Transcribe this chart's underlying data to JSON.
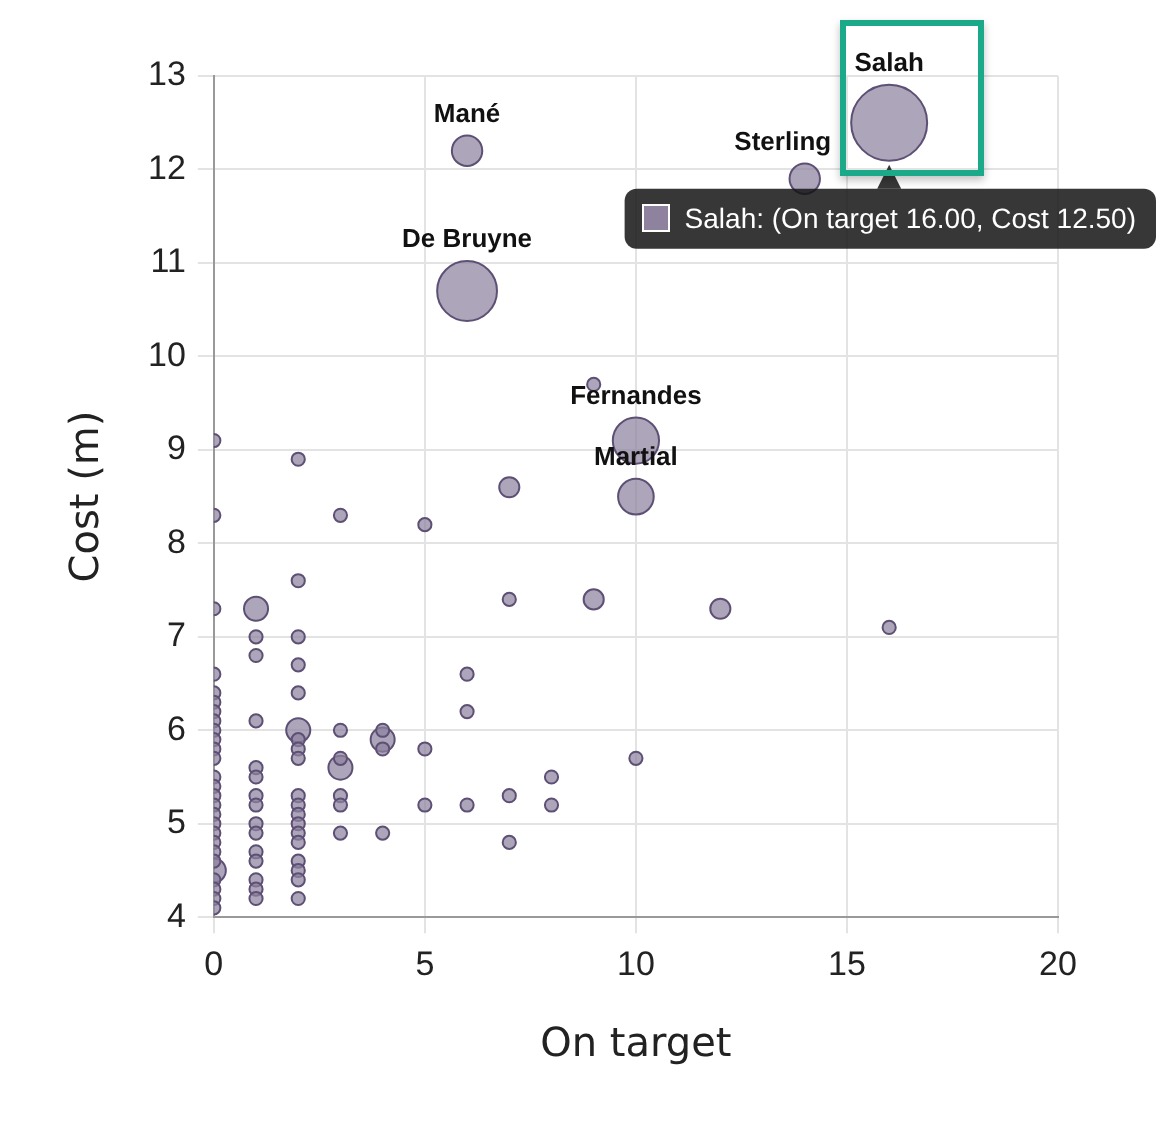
{
  "chart_data": {
    "type": "bubble",
    "xlabel": "On target",
    "ylabel": "Cost (m)",
    "xlim": [
      0,
      20
    ],
    "xticks": [
      0,
      5,
      10,
      15,
      20
    ],
    "ylim": [
      4,
      13
    ],
    "yticks": [
      4,
      5,
      6,
      7,
      8,
      9,
      10,
      11,
      12,
      13
    ],
    "grid": true,
    "legend": false,
    "x": [
      16,
      14,
      6,
      6,
      10,
      10,
      7,
      9,
      12,
      9,
      0,
      2,
      0,
      3,
      5,
      0,
      2,
      7,
      16,
      10,
      0,
      1,
      2,
      3,
      4,
      0,
      0,
      0,
      0,
      0,
      0,
      0,
      0,
      0,
      0,
      0,
      0,
      0,
      0,
      0,
      0,
      0,
      0,
      0,
      0,
      0,
      0,
      0,
      1,
      1,
      1,
      1,
      1,
      1,
      1,
      1,
      1,
      1,
      1,
      1,
      1,
      1,
      2,
      2,
      2,
      2,
      2,
      2,
      2,
      2,
      2,
      2,
      2,
      2,
      2,
      2,
      2,
      2,
      3,
      3,
      3,
      3,
      3,
      4,
      4,
      4,
      5,
      5,
      6,
      6,
      6,
      7,
      7,
      8,
      8
    ],
    "values": [
      12.5,
      11.9,
      12.2,
      10.7,
      9.1,
      8.5,
      8.6,
      7.4,
      7.3,
      9.7,
      9.1,
      8.9,
      8.3,
      8.3,
      8.2,
      7.3,
      7.6,
      7.4,
      7.1,
      5.7,
      4.5,
      7.3,
      6.0,
      5.6,
      5.9,
      6.6,
      6.4,
      6.3,
      6.2,
      6.1,
      6.0,
      5.9,
      5.8,
      5.7,
      5.5,
      5.4,
      5.3,
      5.2,
      5.1,
      5.0,
      4.9,
      4.8,
      4.7,
      4.6,
      4.4,
      4.3,
      4.2,
      4.1,
      7.0,
      6.8,
      6.1,
      5.6,
      5.5,
      5.3,
      5.2,
      5.0,
      4.9,
      4.7,
      4.6,
      4.4,
      4.3,
      4.2,
      7.0,
      6.7,
      6.4,
      5.9,
      5.8,
      5.7,
      5.3,
      5.2,
      5.1,
      5.0,
      4.9,
      4.8,
      4.6,
      4.5,
      4.4,
      4.2,
      6.0,
      5.7,
      5.3,
      5.2,
      4.9,
      6.0,
      5.8,
      4.9,
      5.8,
      5.2,
      6.6,
      6.2,
      5.2,
      5.3,
      4.8,
      5.5,
      5.2
    ],
    "sizes": [
      1,
      0.16,
      0.16,
      0.62,
      0.37,
      0.22,
      0.07,
      0.07,
      0.07,
      0.03,
      0.03,
      0.03,
      0.03,
      0.03,
      0.03,
      0.03,
      0.03,
      0.03,
      0.03,
      0.03,
      0.1,
      0.1,
      0.1,
      0.1,
      0.1,
      0.03,
      0.03,
      0.03,
      0.03,
      0.03,
      0.03,
      0.03,
      0.03,
      0.03,
      0.03,
      0.03,
      0.03,
      0.03,
      0.03,
      0.03,
      0.03,
      0.03,
      0.03,
      0.03,
      0.03,
      0.03,
      0.03,
      0.03,
      0.03,
      0.03,
      0.03,
      0.03,
      0.03,
      0.03,
      0.03,
      0.03,
      0.03,
      0.03,
      0.03,
      0.03,
      0.03,
      0.03,
      0.03,
      0.03,
      0.03,
      0.03,
      0.03,
      0.03,
      0.03,
      0.03,
      0.03,
      0.03,
      0.03,
      0.03,
      0.03,
      0.03,
      0.03,
      0.03,
      0.03,
      0.03,
      0.03,
      0.03,
      0.03,
      0.03,
      0.03,
      0.03,
      0.03,
      0.03,
      0.03,
      0.03,
      0.03,
      0.03,
      0.03,
      0.03,
      0.03
    ],
    "value_labels": [
      "Salah",
      "Sterling",
      "Mané",
      "De Bruyne",
      "Fernandes",
      "Martial",
      null,
      null,
      null,
      null,
      null,
      null,
      null,
      null,
      null,
      null,
      null,
      null,
      null,
      null,
      null,
      null,
      null,
      null,
      null,
      null,
      null,
      null,
      null,
      null,
      null,
      null,
      null,
      null,
      null,
      null,
      null,
      null,
      null,
      null,
      null,
      null,
      null,
      null,
      null,
      null,
      null,
      null,
      null,
      null,
      null,
      null,
      null,
      null,
      null,
      null,
      null,
      null,
      null,
      null,
      null,
      null,
      null,
      null,
      null,
      null,
      null,
      null,
      null,
      null,
      null,
      null,
      null,
      null,
      null,
      null,
      null,
      null,
      null,
      null,
      null,
      null,
      null,
      null,
      null,
      null,
      null,
      null,
      null,
      null,
      null,
      null,
      null,
      null,
      null
    ],
    "color": "#8e829f",
    "annotations": [
      {
        "text": "Salah: (On target 16.00, Cost 12.50)",
        "x": 16,
        "y": 12.5
      }
    ]
  }
}
